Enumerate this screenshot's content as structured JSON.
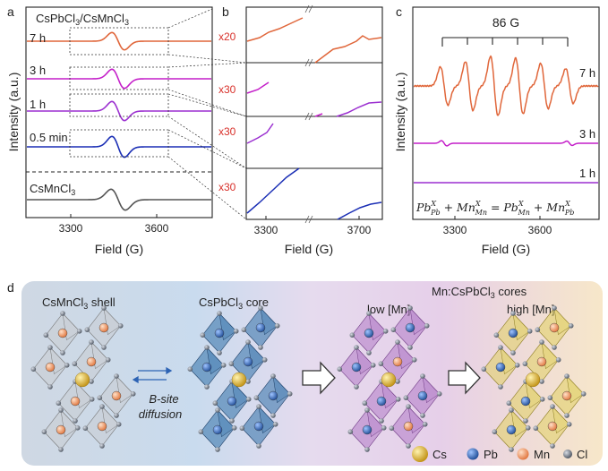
{
  "panels": {
    "a": {
      "label": "a",
      "title": "CsPbCl3/CsMnCl3",
      "title_main": "CsPbCl",
      "title_sub1": "3",
      "title_mid": "/CsMnCl",
      "title_sub2": "3",
      "ylabel": "Intensity (a.u.)",
      "xlabel": "Field (G)",
      "xticks": [
        "3300",
        "3600"
      ],
      "traces": [
        {
          "label": "7 h",
          "color": "#e0663a"
        },
        {
          "label": "3 h",
          "color": "#c41fc9"
        },
        {
          "label": "1 h",
          "color": "#9b2fd0"
        },
        {
          "label": "0.5 min",
          "color": "#1b2fb5"
        }
      ],
      "ref_label_main": "CsMnCl",
      "ref_label_sub": "3",
      "ref_color": "#444444"
    },
    "b": {
      "label": "b",
      "xlabel": "Field (G)",
      "xticks": [
        "3300",
        "3700"
      ],
      "multipliers": [
        "x20",
        "x30",
        "x30",
        "x30"
      ]
    },
    "c": {
      "label": "c",
      "ylabel": "Intensity (a.u.)",
      "xlabel": "Field (G)",
      "xticks": [
        "3300",
        "3600"
      ],
      "splitting": "86 G",
      "traces": [
        {
          "label": "7 h",
          "color": "#e0663a"
        },
        {
          "label": "3 h",
          "color": "#c41fc9"
        },
        {
          "label": "1 h",
          "color": "#9b2fd0"
        }
      ],
      "equation": "Pb_Pb^X + Mn_Mn^X = Pb_Mn^X + Mn_Pb^X"
    },
    "d": {
      "label": "d",
      "shell_main": "CsMnCl",
      "shell_sub": "3",
      "shell_rest": " shell",
      "core_main": "CsPbCl",
      "core_sub": "3",
      "core_rest": " core",
      "cores_pre": "Mn:CsPbCl",
      "cores_sub": "3",
      "cores_rest": " cores",
      "low": "low [Mn]",
      "high": "high [Mn]",
      "diffusion_1": "B-site",
      "diffusion_2": "diffusion",
      "legend": [
        {
          "label": "Cs",
          "color": "#d6a820"
        },
        {
          "label": "Pb",
          "color": "#2d63b4"
        },
        {
          "label": "Mn",
          "color": "#ee9a62"
        },
        {
          "label": "Cl",
          "color": "#707a8a"
        }
      ]
    }
  }
}
